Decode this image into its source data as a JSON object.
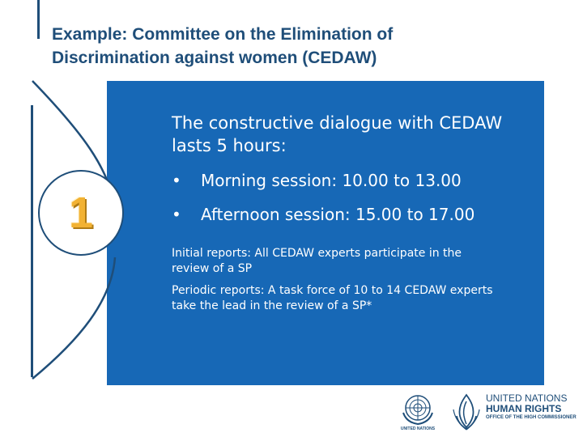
{
  "slide": {
    "title_line1": "Example: Committee on the Elimination of",
    "title_line2": "Discrimination against women (CEDAW)",
    "step_number": "1"
  },
  "panel": {
    "intro_line1": "The constructive dialogue with CEDAW",
    "intro_line2": "lasts 5 hours:",
    "bullets": [
      "Morning session: 10.00 to 13.00",
      "Afternoon session: 15.00 to 17.00"
    ],
    "note1_line1": "Initial reports: All CEDAW experts participate in the",
    "note1_line2": "review of a SP",
    "note2_line1": "Periodic reports: A task force of 10 to 14 CEDAW experts",
    "note2_line2": "take the lead in the review of a SP*"
  },
  "logos": {
    "un_caption": "UNITED NATIONS",
    "ohchr_line1": "UNITED NATIONS",
    "ohchr_line2": "HUMAN RIGHTS",
    "ohchr_line3": "OFFICE OF THE HIGH COMMISSIONER"
  },
  "colors": {
    "navy": "#1f4e79",
    "panel_blue": "#1768b6",
    "number_gold": "#f2b233"
  },
  "icons": {
    "bullet": "bullet-icon",
    "un_emblem": "un-emblem-icon",
    "ohchr_emblem": "ohchr-emblem-icon"
  }
}
